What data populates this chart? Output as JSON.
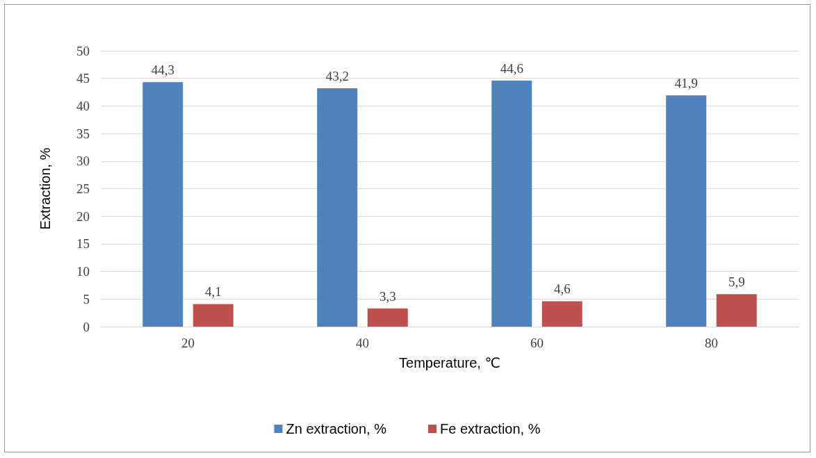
{
  "chart_data": {
    "type": "bar",
    "xlabel": "Temperature, ℃",
    "ylabel": "Extraction, %",
    "categories": [
      "20",
      "40",
      "60",
      "80"
    ],
    "series": [
      {
        "name": "Zn extraction, %",
        "color": "#4f81bd",
        "values": [
          44.3,
          43.2,
          44.6,
          41.9
        ],
        "value_labels": [
          "44,3",
          "43,2",
          "44,6",
          "41,9"
        ]
      },
      {
        "name": "Fe extraction, %",
        "color": "#c0504d",
        "values": [
          4.1,
          3.3,
          4.6,
          5.9
        ],
        "value_labels": [
          "4,1",
          "3,3",
          "4,6",
          "5,9"
        ]
      }
    ],
    "ylim": [
      0,
      50
    ],
    "yticks": [
      0,
      5,
      10,
      15,
      20,
      25,
      30,
      35,
      40,
      45,
      50
    ],
    "grid": "y",
    "legend": "bottom"
  }
}
